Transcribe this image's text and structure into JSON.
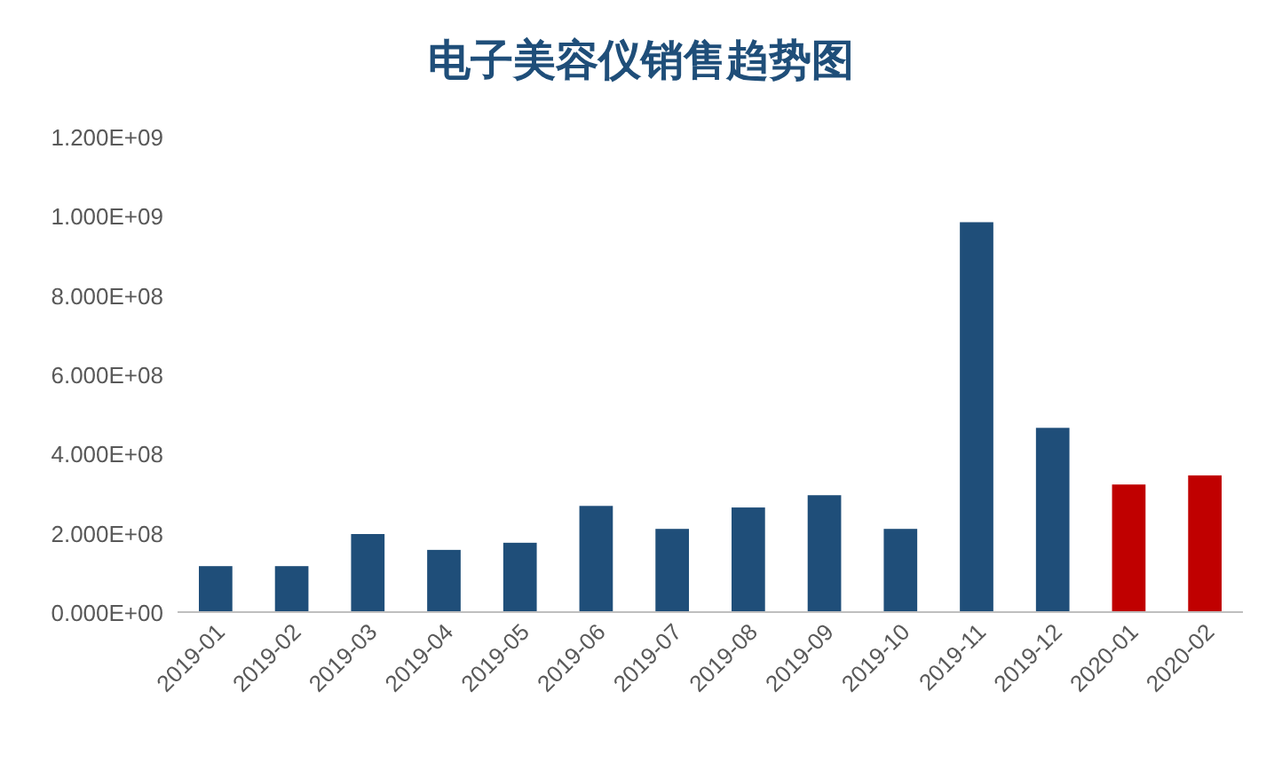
{
  "chart_data": {
    "type": "bar",
    "title": "电子美容仪销售趋势图",
    "categories": [
      "2019-01",
      "2019-02",
      "2019-03",
      "2019-04",
      "2019-05",
      "2019-06",
      "2019-07",
      "2019-08",
      "2019-09",
      "2019-10",
      "2019-11",
      "2019-12",
      "2020-01",
      "2020-02"
    ],
    "values": [
      116000000,
      116000000,
      197000000,
      157000000,
      175000000,
      268000000,
      210000000,
      264000000,
      295000000,
      210000000,
      984000000,
      465000000,
      322000000,
      345000000
    ],
    "colors": [
      "#1f4e79",
      "#1f4e79",
      "#1f4e79",
      "#1f4e79",
      "#1f4e79",
      "#1f4e79",
      "#1f4e79",
      "#1f4e79",
      "#1f4e79",
      "#1f4e79",
      "#1f4e79",
      "#1f4e79",
      "#c00000",
      "#c00000"
    ],
    "ylim": [
      0,
      1200000000
    ],
    "yticks": [
      {
        "value": 0,
        "label": "0.000E+00"
      },
      {
        "value": 200000000,
        "label": "2.000E+08"
      },
      {
        "value": 400000000,
        "label": "4.000E+08"
      },
      {
        "value": 600000000,
        "label": "6.000E+08"
      },
      {
        "value": 800000000,
        "label": "8.000E+08"
      },
      {
        "value": 1000000000,
        "label": "1.000E+09"
      },
      {
        "value": 1200000000,
        "label": "1.200E+09"
      }
    ],
    "grid": false
  }
}
